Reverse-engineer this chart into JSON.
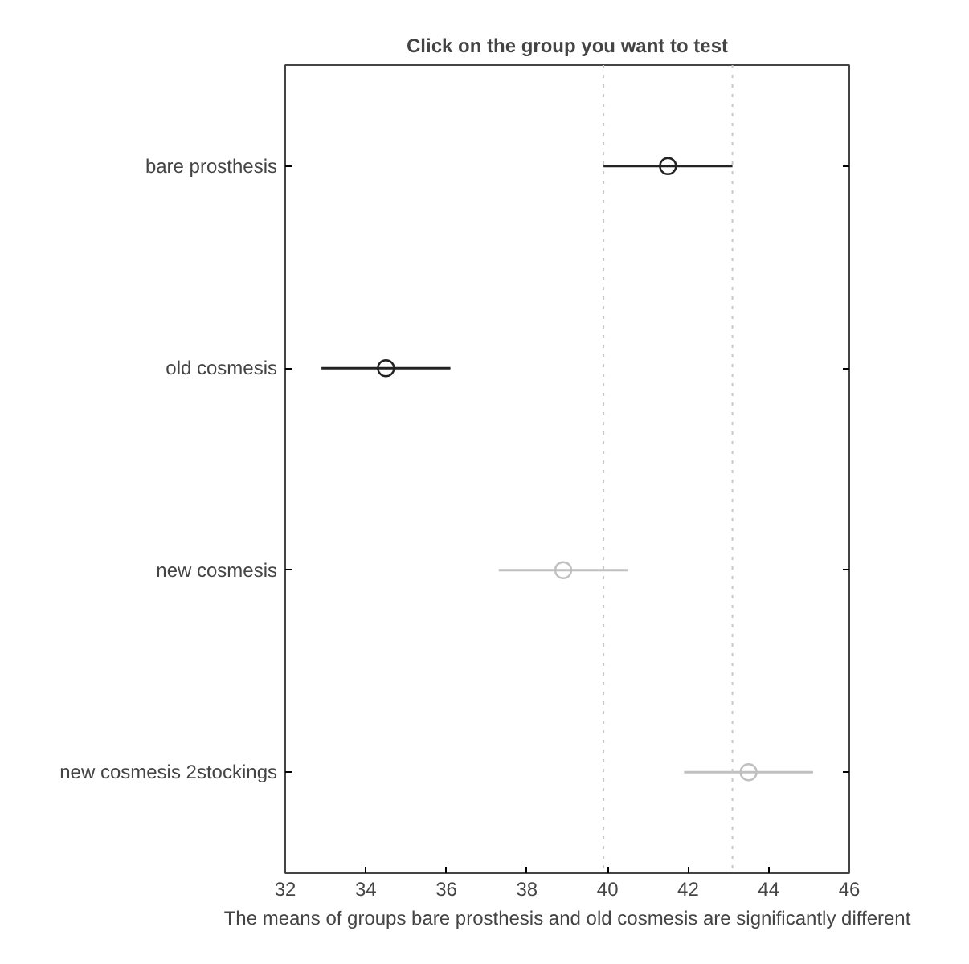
{
  "chart_data": {
    "type": "scatter",
    "orientation": "horizontal",
    "title": "Click on the group you want to test",
    "xlabel": "The means of groups bare prosthesis and old cosmesis are significantly different",
    "categories": [
      "bare prosthesis",
      "old cosmesis",
      "new cosmesis",
      "new cosmesis 2stockings"
    ],
    "values": [
      41.5,
      34.5,
      38.9,
      43.5
    ],
    "errors": [
      1.6,
      1.6,
      1.6,
      1.6
    ],
    "colors": [
      "#222222",
      "#222222",
      "#c0c0c0",
      "#c0c0c0"
    ],
    "marker": "circle",
    "xlim": [
      32,
      46
    ],
    "xticks": [
      32,
      34,
      36,
      38,
      40,
      42,
      44,
      46
    ],
    "ref_lines": [
      {
        "axis": "x",
        "value": 39.9,
        "color": "#c8c8c8",
        "line_style": "dotted"
      },
      {
        "axis": "x",
        "value": 43.1,
        "color": "#c8c8c8",
        "line_style": "dotted"
      }
    ],
    "grid": false
  }
}
